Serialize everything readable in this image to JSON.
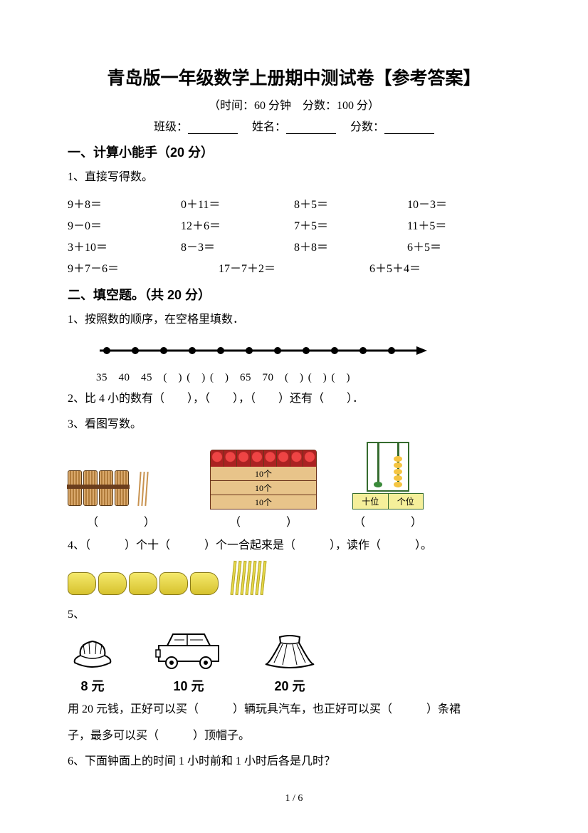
{
  "title": "青岛版一年级数学上册期中测试卷【参考答案】",
  "meta": "（时间：60 分钟　分数：100 分）",
  "field_class": "班级：",
  "field_name": "姓名：",
  "field_score": "分数：",
  "section1": "一、计算小能手（20 分）",
  "q1_1": "1、直接写得数。",
  "calc": [
    [
      "9＋8＝",
      "0＋11＝",
      "8＋5＝",
      "10－3＝"
    ],
    [
      "9－0＝",
      "12＋6＝",
      "7＋5＝",
      "11＋5＝"
    ],
    [
      "3＋10＝",
      "8－3＝",
      "8＋8＝",
      "6＋5＝"
    ]
  ],
  "calc3": [
    "9＋7－6＝",
    "17－7＋2＝",
    "6＋5＋4＝"
  ],
  "section2": "二、填空题。（共 20 分）",
  "q2_1": "1、按照数的顺序，在空格里填数．",
  "numline_labels": "35　40　45　(　) (　) (　)　65　70　(　) (　) (　)",
  "numline_ticks": [
    "35",
    "40",
    "45",
    "",
    "",
    "",
    "65",
    "70",
    "",
    "",
    ""
  ],
  "q2_2": "2、比 4 小的数有（　　），（　　），（　　）还有（　　）．",
  "q2_3": "3、看图写数。",
  "crate_labels": [
    "10个",
    "10个",
    "10个"
  ],
  "abacus_tens_label": "十位",
  "abacus_ones_label": "个位",
  "abacus_tens_beads": 1,
  "abacus_ones_beads": 5,
  "fig3_ans": [
    "（　　　　）",
    "（　　　　）",
    "（　　　　）"
  ],
  "q2_4": "4、（　　　）个十（　　　）个一合起来是（　　　），读作（　　　）。",
  "q2_5": "5、",
  "q5_hat": "8 元",
  "q5_car": "10 元",
  "q5_skirt": "20 元",
  "q2_5_text1": "用 20 元钱，正好可以买（　　　）辆玩具汽车，也正好可以买（　　　）条裙",
  "q2_5_text2": "子，最多可以买（　　　）顶帽子。",
  "q2_6": "6、下面钟面上的时间 1 小时前和 1 小时后各是几时？",
  "pagenum": "1 / 6",
  "colors": {
    "text": "#000000",
    "bundle_fill": "#d9a86b",
    "bundle_band": "#6b3e1d",
    "crate_apples": "#d33333",
    "crate_wood": "#e8c48a",
    "abacus_frame": "#356b2e",
    "abacus_bead_tens": "#3a8a3a",
    "abacus_bead_ones": "#f5c542",
    "abacus_base": "#f5ef9a",
    "yellow_bundle": "#f5e96b"
  }
}
